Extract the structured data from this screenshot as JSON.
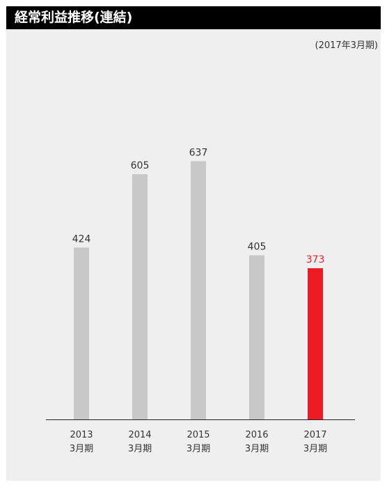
{
  "header": {
    "title": "経常利益推移(連結)"
  },
  "unit_note": "(2017年3月期)",
  "colors": {
    "header_bg": "#000000",
    "panel_bg": "#efefef",
    "bar_default": "#c8c8c8",
    "bar_highlight": "#ed1c24",
    "label_default": "#333333",
    "label_highlight": "#ed1c24"
  },
  "chart_data": {
    "type": "bar",
    "title": "経常利益推移(連結)",
    "subtitle": "(2017年3月期)",
    "categories": [
      {
        "year": "2013",
        "period": "3月期"
      },
      {
        "year": "2014",
        "period": "3月期"
      },
      {
        "year": "2015",
        "period": "3月期"
      },
      {
        "year": "2016",
        "period": "3月期"
      },
      {
        "year": "2017",
        "period": "3月期"
      }
    ],
    "values": [
      424,
      605,
      637,
      405,
      373
    ],
    "highlight_index": 4,
    "ylim": [
      0,
      700
    ],
    "grid": false,
    "xlabel": "",
    "ylabel": ""
  }
}
